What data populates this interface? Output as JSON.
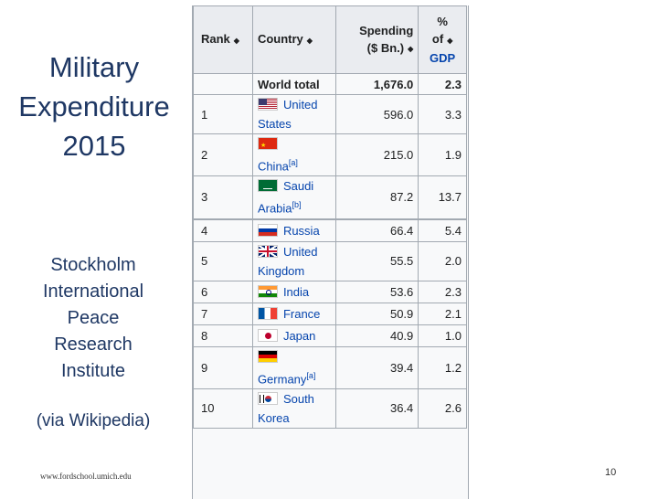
{
  "slide": {
    "title_lines": [
      "Military",
      "Expenditure",
      "2015"
    ],
    "source_lines": [
      "Stockholm",
      "International",
      "Peace",
      "Research",
      "Institute"
    ],
    "via": "(via Wikipedia)",
    "footer_url": "www.fordschool.umich.edu",
    "page_number": "10"
  },
  "table": {
    "headers": {
      "rank": "Rank",
      "country": "Country",
      "spending_line1": "Spending",
      "spending_line2": "($ Bn.)",
      "gdp_line1": "%",
      "gdp_line2": "of",
      "gdp_line3": "GDP"
    },
    "sort_icon": "sort-arrows-icon",
    "total": {
      "label": "World total",
      "spending": "1,676.0",
      "gdp": "2.3"
    },
    "rows": [
      {
        "rank": "1",
        "country": "United States",
        "note": "",
        "spending": "596.0",
        "gdp": "3.3",
        "flag": "us-flag-icon"
      },
      {
        "rank": "2",
        "country": "China",
        "note": "[a]",
        "spending": "215.0",
        "gdp": "1.9",
        "flag": "china-flag-icon"
      },
      {
        "rank": "3",
        "country": "Saudi Arabia",
        "note": "[b]",
        "spending": "87.2",
        "gdp": "13.7",
        "flag": "saudi-flag-icon"
      },
      {
        "rank": "4",
        "country": "Russia",
        "note": "",
        "spending": "66.4",
        "gdp": "5.4",
        "flag": "russia-flag-icon"
      },
      {
        "rank": "5",
        "country": "United Kingdom",
        "note": "",
        "spending": "55.5",
        "gdp": "2.0",
        "flag": "uk-flag-icon"
      },
      {
        "rank": "6",
        "country": "India",
        "note": "",
        "spending": "53.6",
        "gdp": "2.3",
        "flag": "india-flag-icon"
      },
      {
        "rank": "7",
        "country": "France",
        "note": "",
        "spending": "50.9",
        "gdp": "2.1",
        "flag": "france-flag-icon"
      },
      {
        "rank": "8",
        "country": "Japan",
        "note": "",
        "spending": "40.9",
        "gdp": "1.0",
        "flag": "japan-flag-icon"
      },
      {
        "rank": "9",
        "country": "Germany",
        "note": "[a]",
        "spending": "39.4",
        "gdp": "1.2",
        "flag": "germany-flag-icon"
      },
      {
        "rank": "10",
        "country": "South Korea",
        "note": "",
        "spending": "36.4",
        "gdp": "2.6",
        "flag": "south-korea-flag-icon"
      }
    ]
  },
  "colors": {
    "title_text": "#1f3864",
    "link": "#0645ad",
    "header_bg": "#eaecf0",
    "cell_bg": "#f8f9fa",
    "border": "#a2a9b1"
  }
}
